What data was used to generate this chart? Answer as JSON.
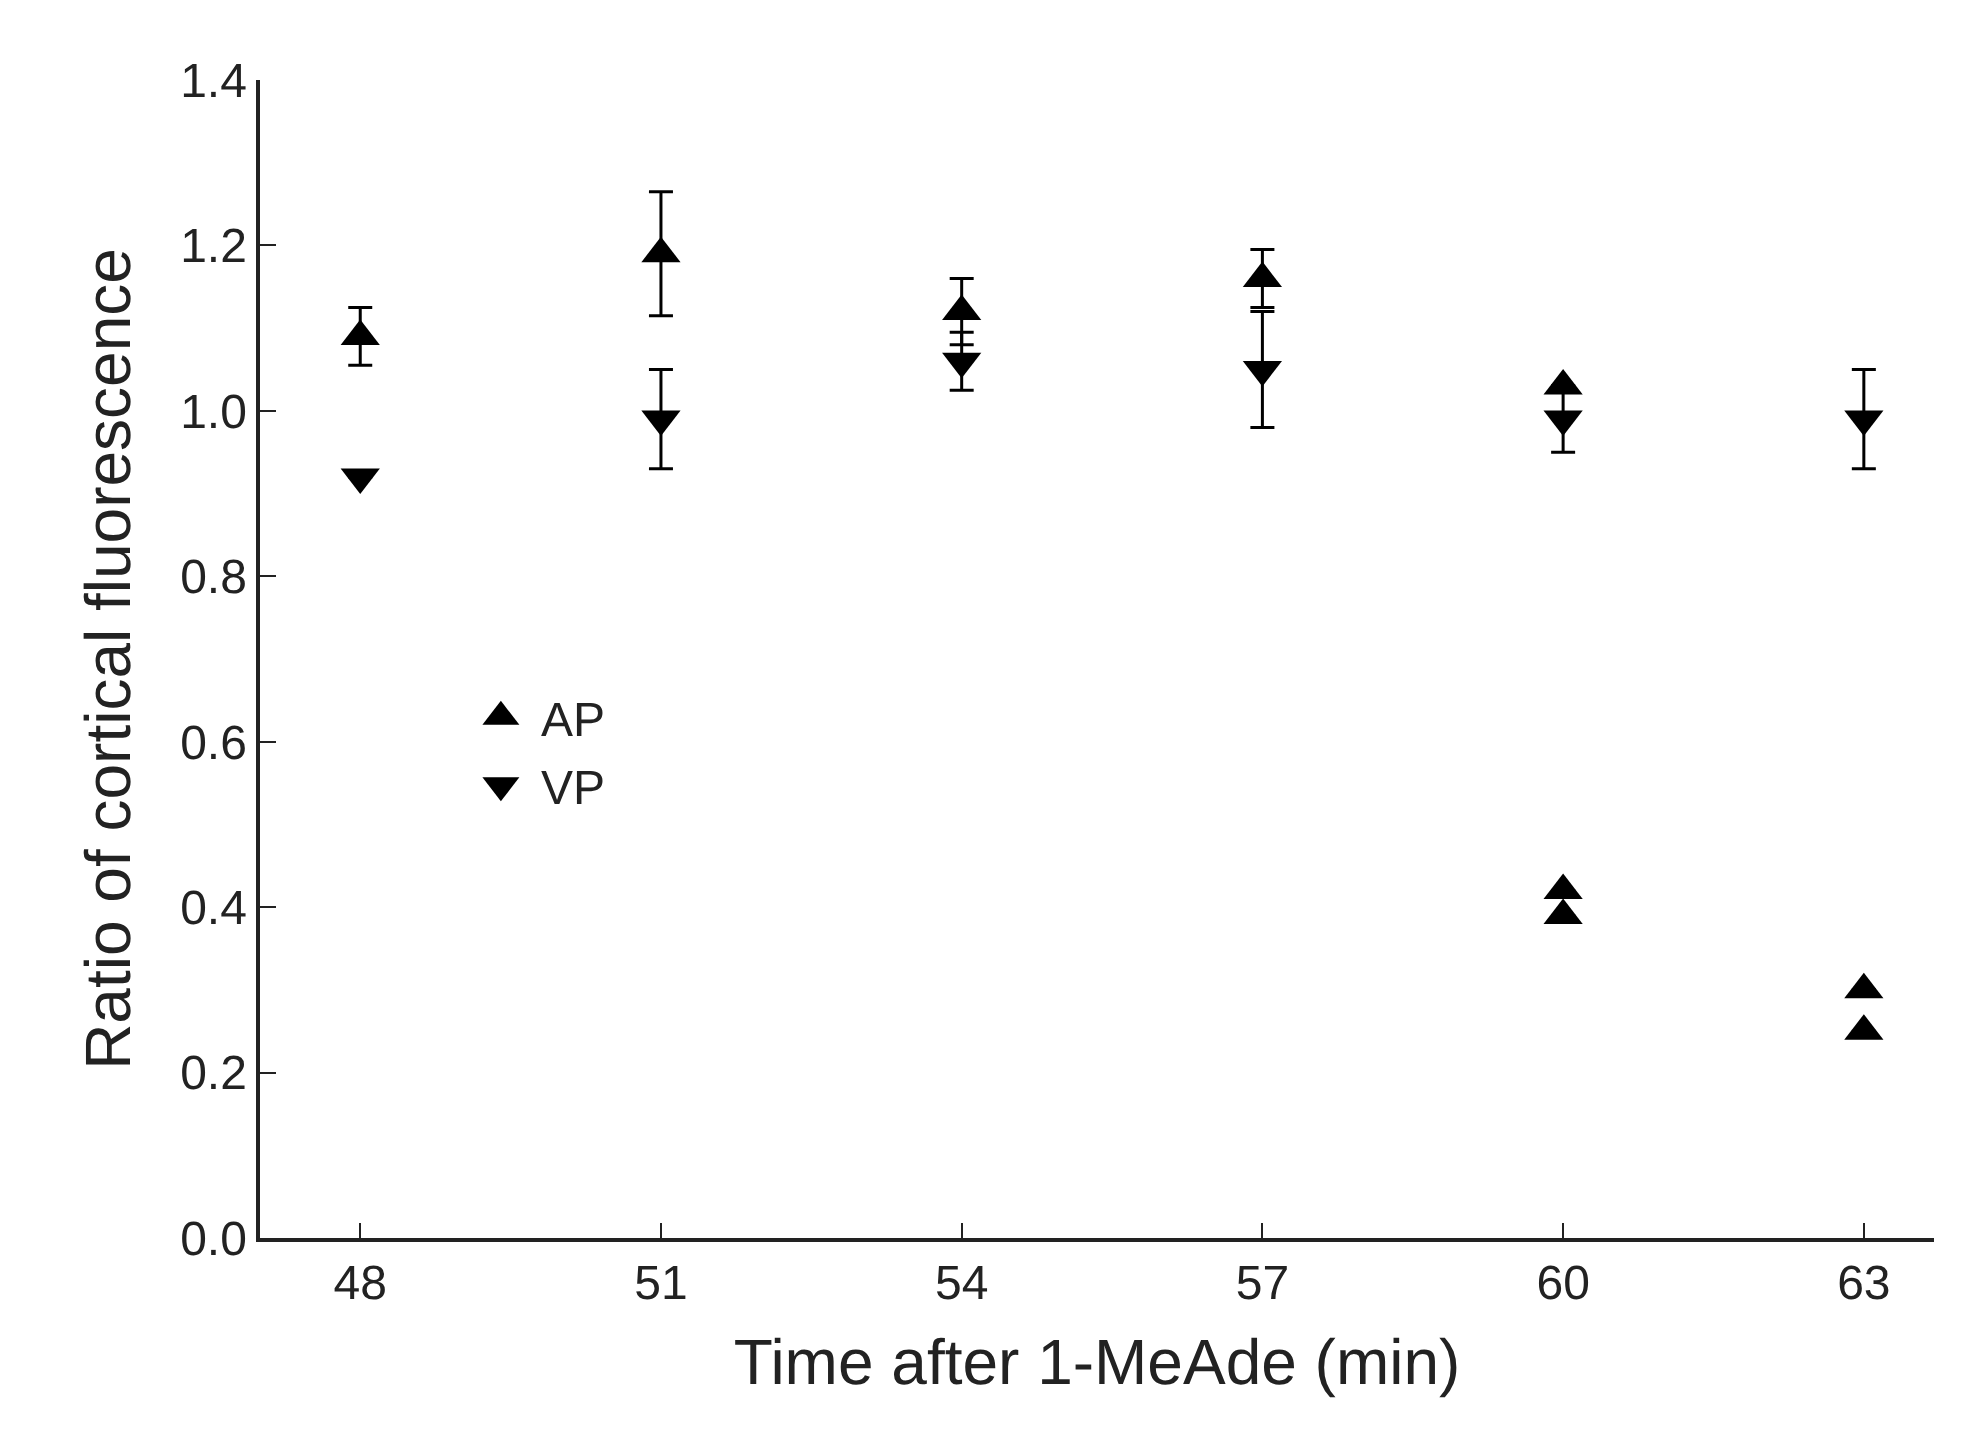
{
  "chart_data": {
    "type": "scatter",
    "xlabel": "Time after 1-MeAde (min)",
    "ylabel": "Ratio of cortical fluorescence",
    "xlim": [
      47,
      63.7
    ],
    "xticks": [
      48,
      51,
      54,
      57,
      60,
      63
    ],
    "ylim": [
      0,
      1.4
    ],
    "yticks": [
      {
        "value": 0,
        "label": "0.0"
      },
      0.2,
      0.4,
      0.6,
      0.8,
      {
        "value": 1,
        "label": "1.0"
      },
      1.2,
      1.4
    ],
    "legend": "left",
    "series": [
      {
        "name": "AP",
        "color": "#000000",
        "marker": "triangle-up",
        "x": [
          48,
          51,
          54,
          57,
          60,
          60,
          60,
          63,
          63
        ],
        "values": [
          1.09,
          1.19,
          1.12,
          1.16,
          1.03,
          0.42,
          0.39,
          0.3,
          0.25
        ],
        "errors": [
          0.035,
          0.075,
          0.04,
          0.035,
          null,
          null,
          null,
          null,
          null
        ]
      },
      {
        "name": "VP",
        "color": "#000000",
        "marker": "triangle-down",
        "x": [
          48,
          51,
          54,
          57,
          60,
          63
        ],
        "values": [
          0.92,
          0.99,
          1.06,
          1.05,
          0.99,
          0.99
        ],
        "errors": [
          null,
          0.06,
          0.035,
          0.07,
          0.04,
          0.06
        ]
      }
    ]
  }
}
